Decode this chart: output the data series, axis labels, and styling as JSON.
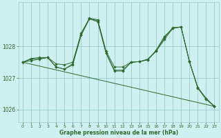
{
  "xlabel": "Graphe pression niveau de la mer (hPa)",
  "bg_color": "#cff0f0",
  "grid_color": "#99cccc",
  "line_color": "#2d6a2d",
  "xlim": [
    -0.5,
    23.5
  ],
  "ylim": [
    1025.6,
    1029.4
  ],
  "yticks": [
    1026,
    1027,
    1028
  ],
  "xticks": [
    0,
    1,
    2,
    3,
    4,
    5,
    6,
    7,
    8,
    9,
    10,
    11,
    12,
    13,
    14,
    15,
    16,
    17,
    18,
    19,
    20,
    21,
    22,
    23
  ],
  "series": [
    {
      "x": [
        0,
        1,
        2,
        3,
        4,
        5,
        6,
        7,
        8,
        9,
        10,
        11,
        12,
        13,
        14,
        15,
        16,
        17,
        18,
        19,
        20,
        21,
        22,
        23
      ],
      "y": [
        1027.5,
        1027.55,
        1027.6,
        1027.65,
        1027.35,
        1027.28,
        1027.45,
        1028.38,
        1028.88,
        1028.82,
        1027.8,
        1027.25,
        1027.25,
        1027.5,
        1027.52,
        1027.58,
        1027.85,
        1028.28,
        1028.6,
        1028.62,
        1027.52,
        1026.7,
        1026.35,
        1026.1
      ]
    },
    {
      "x": [
        0,
        1,
        2,
        3,
        4,
        5,
        6,
        7,
        8,
        9,
        10,
        11,
        12,
        13,
        14,
        15,
        16,
        17,
        18,
        19,
        20,
        21,
        22,
        23
      ],
      "y": [
        1027.5,
        1027.6,
        1027.62,
        1027.65,
        1027.35,
        1027.28,
        1027.42,
        1028.35,
        1028.88,
        1028.78,
        1027.78,
        1027.22,
        1027.22,
        1027.5,
        1027.52,
        1027.58,
        1027.88,
        1028.32,
        1028.58,
        1028.62,
        1027.52,
        1026.68,
        1026.32,
        1026.1
      ]
    },
    {
      "x": [
        0,
        23
      ],
      "y": [
        1027.5,
        1026.1
      ]
    },
    {
      "x": [
        0,
        1,
        2,
        3,
        4,
        5,
        6,
        7,
        8,
        9,
        10,
        11,
        12,
        13,
        14,
        15,
        16,
        17,
        18,
        19,
        20,
        21,
        22,
        23
      ],
      "y": [
        1027.5,
        1027.62,
        1027.65,
        1027.65,
        1027.45,
        1027.42,
        1027.5,
        1028.42,
        1028.9,
        1028.85,
        1027.85,
        1027.35,
        1027.35,
        1027.5,
        1027.52,
        1027.6,
        1027.85,
        1028.22,
        1028.58,
        1028.62,
        1027.52,
        1026.7,
        1026.35,
        1026.1
      ]
    }
  ]
}
